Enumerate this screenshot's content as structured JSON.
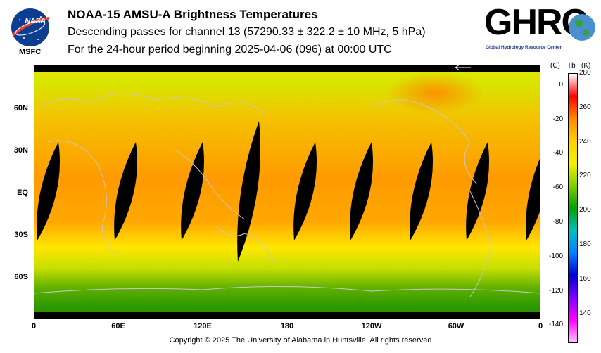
{
  "header": {
    "title": "NOAA-15 AMSU-A Brightness Temperatures",
    "line2": "Descending passes for channel 13 (57290.33 ± 322.2 ± 10 MHz, 5 hPa)",
    "line3": "For the 24-hour period beginning 2025-04-06 (096) at 00:00 UTC"
  },
  "logos": {
    "nasa": "NASA",
    "msfc": "MSFC",
    "ghrc": "GHRC",
    "ghrc_sub": "Global Hydrology Resource Center"
  },
  "map": {
    "lat_labels": [
      "60N",
      "30N",
      "EQ",
      "30S",
      "60S"
    ],
    "lon_labels": [
      "0",
      "60E",
      "120E",
      "180",
      "120W",
      "60W",
      "0"
    ]
  },
  "colorbar": {
    "unit_c": "(C)",
    "unit_tb": "Tb",
    "unit_k": "(K)",
    "celsius_ticks": [
      "0",
      "-20",
      "-40",
      "-60",
      "-80",
      "-100",
      "-120",
      "-140"
    ],
    "kelvin_ticks": [
      "280",
      "260",
      "240",
      "220",
      "200",
      "180",
      "160",
      "140"
    ],
    "colors": [
      "#ffffff",
      "#ff0000",
      "#ff8800",
      "#ffd000",
      "#f5f000",
      "#7fcf00",
      "#00a000",
      "#00c0c0",
      "#0080ff",
      "#0000d0",
      "#8000ff",
      "#ff00ff",
      "#ffc0ff"
    ]
  },
  "footer": {
    "copyright": "Copyright © 2025 The University of Alabama in Huntsville.  All rights reserved"
  }
}
